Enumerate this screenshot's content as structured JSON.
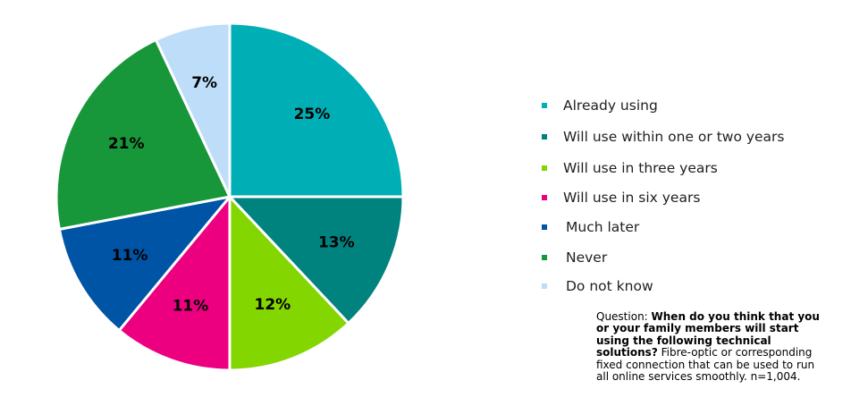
{
  "chart_data": {
    "type": "pie",
    "categories": [
      "Already using",
      "Will use within one or two years",
      "Will use in three years",
      "Will use in six years",
      "Much later",
      "Never",
      "Do not know"
    ],
    "values": [
      25,
      13,
      12,
      11,
      11,
      21,
      7
    ],
    "value_labels": [
      "25%",
      "13%",
      "12%",
      "11%",
      "11%",
      "21%",
      "7%"
    ],
    "colors": [
      "#00AEB5",
      "#00827F",
      "#84D600",
      "#EC0080",
      "#0054A6",
      "#18973A",
      "#BDDDF8"
    ],
    "start_angle": "12 o'clock",
    "direction": "clockwise",
    "legend_position": "right"
  },
  "note": {
    "prefix": "Question: ",
    "question": "When do you think that you or your family members will start using the following technical solutions?",
    "detail": " Fibre-optic or corresponding fixed connection that can be used to run all online services smoothly. n=1,004."
  }
}
